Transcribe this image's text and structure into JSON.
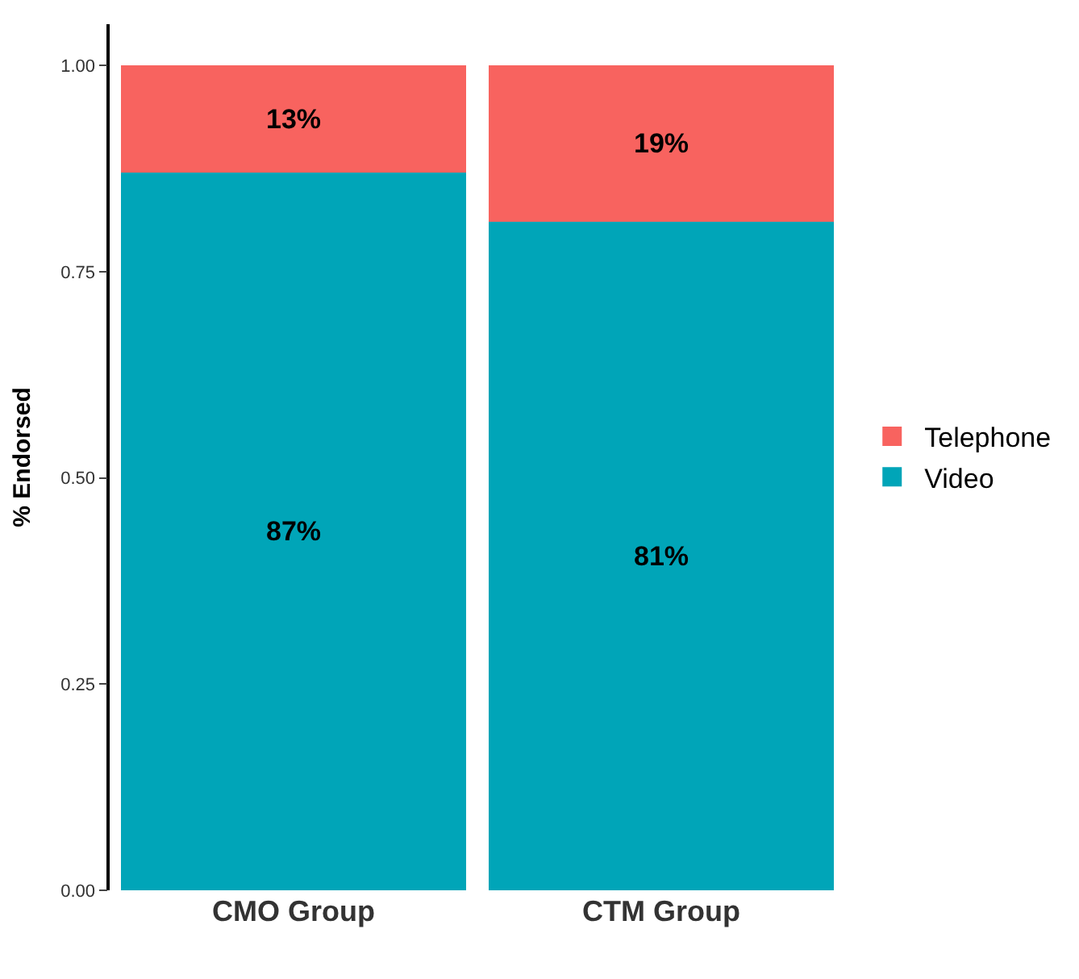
{
  "chart_data": {
    "type": "bar",
    "stacked": true,
    "ylabel": "% Endorsed",
    "categories": [
      "CMO Group",
      "CTM Group"
    ],
    "series": [
      {
        "name": "Video",
        "color": "#00a5b8",
        "values": [
          0.87,
          0.81
        ],
        "value_labels": [
          "87%",
          "81%"
        ]
      },
      {
        "name": "Telephone",
        "color": "#f8635f",
        "values": [
          0.13,
          0.19
        ],
        "value_labels": [
          "13%",
          "19%"
        ]
      }
    ],
    "ylim": [
      0,
      1.05
    ],
    "yticks": [
      {
        "value": 0,
        "label": "0.00"
      },
      {
        "value": 0.25,
        "label": "0.25"
      },
      {
        "value": 0.5,
        "label": "0.50"
      },
      {
        "value": 0.75,
        "label": "0.75"
      },
      {
        "value": 1,
        "label": "1.00"
      }
    ],
    "legend": "right"
  }
}
